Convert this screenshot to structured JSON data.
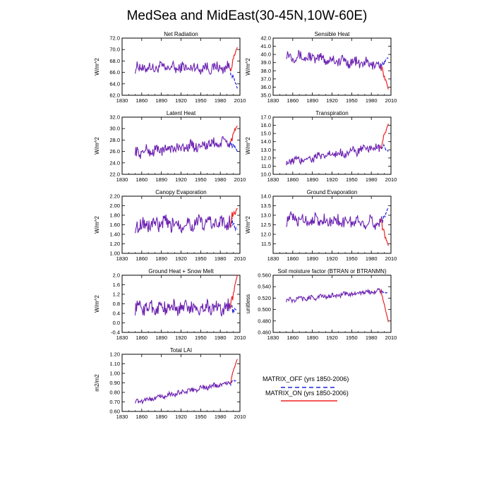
{
  "title": "MedSea and MidEast(30-45N,10W-60E)",
  "colors": {
    "matrix_off": "#2222dd",
    "matrix_on": "#ee2222",
    "purple": "#6a1fb0"
  },
  "legend": {
    "off_label": "MATRIX_OFF (yrs 1850-2006)",
    "on_label": "MATRIX_ON (yrs 1850-2006)"
  },
  "chart_data": [
    {
      "type": "line",
      "title": "Net Radiation",
      "ylabel": "W/m^2",
      "xlim": [
        1830,
        2010
      ],
      "xticks": [
        "1830",
        "1860",
        "1890",
        "1920",
        "1950",
        "1980",
        "2010"
      ],
      "ylim": [
        62.0,
        72.0
      ],
      "yticks": [
        "62.0",
        "64.0",
        "66.0",
        "68.0",
        "70.0",
        "72.0"
      ],
      "years": [
        1850,
        2006
      ],
      "base": 66.8,
      "amp": 0.9,
      "trend": 0.0,
      "off_end": 63.2,
      "on_end": 70.4
    },
    {
      "type": "line",
      "title": "Sensible Heat",
      "ylabel": "W/m^2",
      "xlim": [
        1830,
        2010
      ],
      "xticks": [
        "1830",
        "1860",
        "1890",
        "1920",
        "1950",
        "1980",
        "2010"
      ],
      "ylim": [
        35.0,
        42.0
      ],
      "yticks": [
        "35.0",
        "36.0",
        "37.0",
        "38.0",
        "39.0",
        "40.0",
        "41.0",
        "42.0"
      ],
      "years": [
        1850,
        2006
      ],
      "base": 39.9,
      "amp": 0.6,
      "trend": -1.3,
      "off_end": 39.6,
      "on_end": 35.7
    },
    {
      "type": "line",
      "title": "Latent Heat",
      "ylabel": "W/m^2",
      "xlim": [
        1830,
        2010
      ],
      "xticks": [
        "1830",
        "1860",
        "1890",
        "1920",
        "1950",
        "1980",
        "2010"
      ],
      "ylim": [
        22.0,
        32.0
      ],
      "yticks": [
        "22.0",
        "24.0",
        "26.0",
        "28.0",
        "30.0",
        "32.0"
      ],
      "years": [
        1850,
        2006
      ],
      "base": 25.8,
      "amp": 0.9,
      "trend": 2.0,
      "off_end": 26.0,
      "on_end": 30.5
    },
    {
      "type": "line",
      "title": "Transpiration",
      "ylabel": "W/m^2",
      "xlim": [
        1830,
        2010
      ],
      "xticks": [
        "1830",
        "1860",
        "1890",
        "1920",
        "1950",
        "1980",
        "2010"
      ],
      "ylim": [
        10.0,
        17.0
      ],
      "yticks": [
        "10.0",
        "11.0",
        "12.0",
        "13.0",
        "14.0",
        "15.0",
        "16.0",
        "17.0"
      ],
      "years": [
        1850,
        2006
      ],
      "base": 11.5,
      "amp": 0.5,
      "trend": 2.0,
      "off_end": 12.8,
      "on_end": 16.2
    },
    {
      "type": "line",
      "title": "Canopy Evaporation",
      "ylabel": "W/m^2",
      "xlim": [
        1830,
        2010
      ],
      "xticks": [
        "1830",
        "1860",
        "1890",
        "1920",
        "1950",
        "1980",
        "2010"
      ],
      "ylim": [
        1.0,
        2.2
      ],
      "yticks": [
        "1.00",
        "1.20",
        "1.40",
        "1.60",
        "1.80",
        "2.00",
        "2.20"
      ],
      "years": [
        1850,
        2006
      ],
      "base": 1.6,
      "amp": 0.15,
      "trend": 0.05,
      "off_end": 1.5,
      "on_end": 1.95
    },
    {
      "type": "line",
      "title": "Ground Evaporation",
      "ylabel": "W/m^2",
      "xlim": [
        1830,
        2010
      ],
      "xticks": [
        "1830",
        "1860",
        "1890",
        "1920",
        "1950",
        "1980",
        "2010"
      ],
      "ylim": [
        11.0,
        14.0
      ],
      "yticks": [
        "11.5",
        "12.0",
        "12.5",
        "13.0",
        "13.5",
        "14.0"
      ],
      "years": [
        1850,
        2006
      ],
      "base": 12.8,
      "amp": 0.3,
      "trend": -0.2,
      "off_end": 13.4,
      "on_end": 11.4
    },
    {
      "type": "line",
      "title": "Ground Heat + Snow Melt",
      "ylabel": "W/m^2",
      "xlim": [
        1830,
        2010
      ],
      "xticks": [
        "1830",
        "1860",
        "1890",
        "1920",
        "1950",
        "1980",
        "2010"
      ],
      "ylim": [
        -0.4,
        2.0
      ],
      "yticks": [
        "-0.4",
        "0.0",
        "0.4",
        "0.8",
        "1.2",
        "1.6",
        "2.0"
      ],
      "years": [
        1850,
        2006
      ],
      "base": 0.65,
      "amp": 0.28,
      "trend": 0.0,
      "off_end": 0.5,
      "on_end": 2.0
    },
    {
      "type": "line",
      "title": "Soil moisture factor (BTRAN or BTRANMN)",
      "ylabel": "unitless",
      "xlim": [
        1830,
        2010
      ],
      "xticks": [
        "1830",
        "1860",
        "1890",
        "1920",
        "1950",
        "1980",
        "2010"
      ],
      "ylim": [
        0.46,
        0.56
      ],
      "yticks": [
        "0.460",
        "0.480",
        "0.500",
        "0.520",
        "0.540",
        "0.560"
      ],
      "years": [
        1850,
        2006
      ],
      "base": 0.516,
      "amp": 0.004,
      "trend": 0.018,
      "off_end": 0.528,
      "on_end": 0.478
    },
    {
      "type": "line",
      "title": "Total LAI",
      "ylabel": "m2/m2",
      "xlim": [
        1830,
        2010
      ],
      "xticks": [
        "1830",
        "1860",
        "1890",
        "1920",
        "1950",
        "1980",
        "2010"
      ],
      "ylim": [
        0.6,
        1.2
      ],
      "yticks": [
        "0.60",
        "0.70",
        "0.80",
        "0.90",
        "1.00",
        "1.10",
        "1.20"
      ],
      "years": [
        1850,
        2006
      ],
      "base": 0.7,
      "amp": 0.025,
      "trend": 0.22,
      "off_end": 0.92,
      "on_end": 1.15
    }
  ]
}
